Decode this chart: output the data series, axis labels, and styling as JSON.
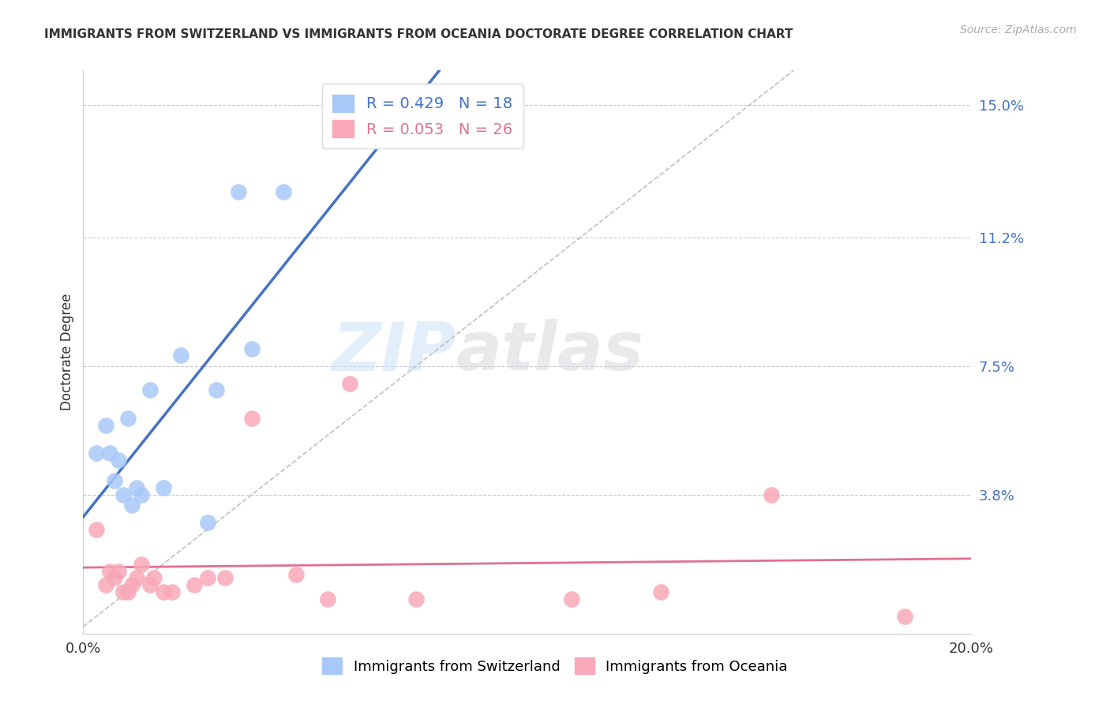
{
  "title": "IMMIGRANTS FROM SWITZERLAND VS IMMIGRANTS FROM OCEANIA DOCTORATE DEGREE CORRELATION CHART",
  "source": "Source: ZipAtlas.com",
  "ylabel": "Doctorate Degree",
  "right_yticks": [
    0.0,
    0.038,
    0.075,
    0.112,
    0.15
  ],
  "right_yticklabels": [
    "",
    "3.8%",
    "7.5%",
    "11.2%",
    "15.0%"
  ],
  "x_ticks": [
    0.0,
    0.04,
    0.08,
    0.12,
    0.16,
    0.2
  ],
  "xlim": [
    0.0,
    0.2
  ],
  "ylim": [
    -0.002,
    0.16
  ],
  "color_switzerland": "#a8c8f8",
  "color_oceania": "#f8a8b8",
  "line_color_switzerland": "#4472c4",
  "line_color_oceania": "#e07090",
  "diagonal_color": "#c0c0c0",
  "watermark_zip": "ZIP",
  "watermark_atlas": "atlas",
  "switzerland_x": [
    0.003,
    0.005,
    0.006,
    0.007,
    0.008,
    0.009,
    0.01,
    0.011,
    0.012,
    0.013,
    0.015,
    0.018,
    0.022,
    0.028,
    0.035,
    0.045,
    0.03,
    0.038
  ],
  "switzerland_y": [
    0.05,
    0.058,
    0.05,
    0.042,
    0.048,
    0.038,
    0.06,
    0.035,
    0.04,
    0.038,
    0.068,
    0.04,
    0.078,
    0.03,
    0.125,
    0.125,
    0.068,
    0.08
  ],
  "oceania_x": [
    0.003,
    0.005,
    0.006,
    0.007,
    0.008,
    0.009,
    0.01,
    0.011,
    0.012,
    0.013,
    0.015,
    0.016,
    0.018,
    0.02,
    0.025,
    0.028,
    0.032,
    0.038,
    0.048,
    0.055,
    0.06,
    0.075,
    0.11,
    0.13,
    0.155,
    0.185
  ],
  "oceania_y": [
    0.028,
    0.012,
    0.016,
    0.014,
    0.016,
    0.01,
    0.01,
    0.012,
    0.014,
    0.018,
    0.012,
    0.014,
    0.01,
    0.01,
    0.012,
    0.014,
    0.014,
    0.06,
    0.015,
    0.008,
    0.07,
    0.008,
    0.008,
    0.01,
    0.038,
    0.003
  ]
}
